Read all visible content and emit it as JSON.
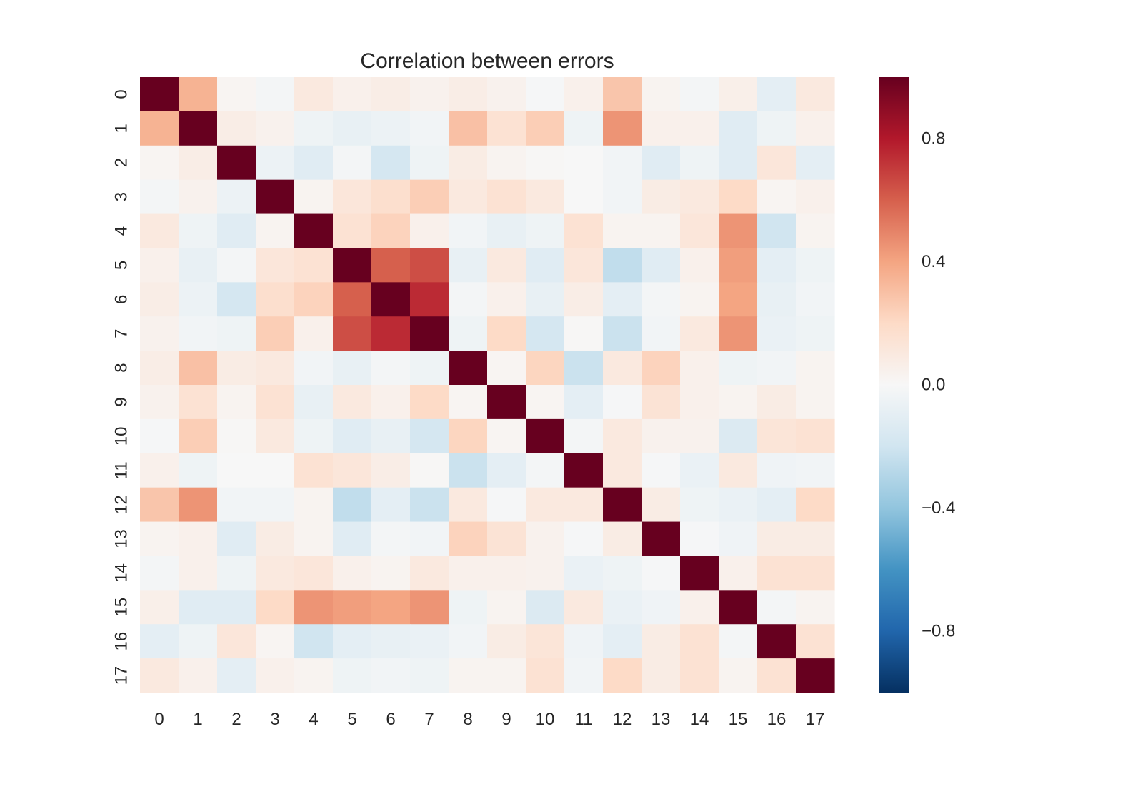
{
  "chart_data": {
    "type": "heatmap",
    "title": "Correlation between errors",
    "xlabel": "",
    "ylabel": "",
    "x_categories": [
      "0",
      "1",
      "2",
      "3",
      "4",
      "5",
      "6",
      "7",
      "8",
      "9",
      "10",
      "11",
      "12",
      "13",
      "14",
      "15",
      "16",
      "17"
    ],
    "y_categories": [
      "0",
      "1",
      "2",
      "3",
      "4",
      "5",
      "6",
      "7",
      "8",
      "9",
      "10",
      "11",
      "12",
      "13",
      "14",
      "15",
      "16",
      "17"
    ],
    "values": [
      [
        1.0,
        0.35,
        0.02,
        -0.02,
        0.1,
        0.05,
        0.07,
        0.04,
        0.07,
        0.04,
        -0.01,
        0.05,
        0.28,
        0.03,
        -0.02,
        0.06,
        -0.1,
        0.1
      ],
      [
        0.35,
        1.0,
        0.07,
        0.04,
        -0.05,
        -0.08,
        -0.06,
        -0.03,
        0.3,
        0.15,
        0.25,
        -0.05,
        0.45,
        0.05,
        0.05,
        -0.12,
        -0.05,
        0.05
      ],
      [
        0.02,
        0.07,
        1.0,
        -0.06,
        -0.12,
        -0.02,
        -0.18,
        -0.05,
        0.08,
        0.03,
        0.01,
        0.0,
        -0.03,
        -0.12,
        -0.05,
        -0.12,
        0.12,
        -0.1
      ],
      [
        -0.02,
        0.04,
        -0.06,
        1.0,
        0.03,
        0.12,
        0.17,
        0.25,
        0.1,
        0.15,
        0.1,
        0.0,
        -0.03,
        0.08,
        0.1,
        0.2,
        0.02,
        0.05
      ],
      [
        0.1,
        -0.05,
        -0.12,
        0.03,
        1.0,
        0.15,
        0.23,
        0.05,
        -0.03,
        -0.08,
        -0.05,
        0.15,
        0.03,
        0.03,
        0.12,
        0.45,
        -0.2,
        0.03
      ],
      [
        0.05,
        -0.08,
        -0.02,
        0.12,
        0.15,
        1.0,
        0.6,
        0.65,
        -0.08,
        0.1,
        -0.12,
        0.12,
        -0.25,
        -0.12,
        0.05,
        0.42,
        -0.1,
        -0.05
      ],
      [
        0.07,
        -0.06,
        -0.18,
        0.17,
        0.23,
        0.6,
        1.0,
        0.75,
        -0.02,
        0.05,
        -0.08,
        0.07,
        -0.1,
        -0.02,
        0.03,
        0.4,
        -0.08,
        -0.03
      ],
      [
        0.04,
        -0.03,
        -0.05,
        0.25,
        0.05,
        0.65,
        0.75,
        1.0,
        -0.05,
        0.2,
        -0.18,
        0.01,
        -0.22,
        -0.03,
        0.1,
        0.45,
        -0.07,
        -0.05
      ],
      [
        0.07,
        0.3,
        0.08,
        0.1,
        -0.03,
        -0.08,
        -0.02,
        -0.05,
        1.0,
        0.02,
        0.22,
        -0.22,
        0.1,
        0.23,
        0.05,
        -0.05,
        -0.03,
        0.03
      ],
      [
        0.04,
        0.15,
        0.03,
        0.15,
        -0.08,
        0.1,
        0.05,
        0.2,
        0.02,
        1.0,
        0.02,
        -0.1,
        -0.01,
        0.14,
        0.05,
        0.03,
        0.08,
        0.03
      ],
      [
        -0.01,
        0.25,
        0.01,
        0.1,
        -0.05,
        -0.12,
        -0.08,
        -0.18,
        0.22,
        0.02,
        1.0,
        -0.02,
        0.1,
        0.04,
        0.04,
        -0.14,
        0.13,
        0.15
      ],
      [
        0.05,
        -0.05,
        0.0,
        0.0,
        0.15,
        0.12,
        0.07,
        0.01,
        -0.22,
        -0.1,
        -0.02,
        1.0,
        0.1,
        -0.01,
        -0.07,
        0.1,
        -0.04,
        -0.03
      ],
      [
        0.28,
        0.45,
        -0.03,
        -0.03,
        0.03,
        -0.25,
        -0.1,
        -0.22,
        0.1,
        -0.01,
        0.1,
        0.1,
        1.0,
        0.08,
        -0.05,
        -0.07,
        -0.1,
        0.2
      ],
      [
        0.03,
        0.05,
        -0.12,
        0.08,
        0.03,
        -0.12,
        -0.02,
        -0.03,
        0.23,
        0.14,
        0.04,
        -0.01,
        0.08,
        1.0,
        -0.01,
        -0.04,
        0.08,
        0.08
      ],
      [
        -0.02,
        0.05,
        -0.05,
        0.1,
        0.12,
        0.05,
        0.03,
        0.1,
        0.05,
        0.05,
        0.04,
        -0.07,
        -0.05,
        -0.01,
        1.0,
        0.05,
        0.15,
        0.15
      ],
      [
        0.06,
        -0.12,
        -0.12,
        0.2,
        0.45,
        0.42,
        0.4,
        0.45,
        -0.05,
        0.03,
        -0.14,
        0.1,
        -0.07,
        -0.04,
        0.05,
        1.0,
        -0.02,
        0.03
      ],
      [
        -0.1,
        -0.05,
        0.12,
        0.02,
        -0.2,
        -0.1,
        -0.08,
        -0.07,
        -0.03,
        0.08,
        0.13,
        -0.04,
        -0.1,
        0.08,
        0.15,
        -0.02,
        1.0,
        0.15
      ],
      [
        0.1,
        0.05,
        -0.1,
        0.05,
        0.03,
        -0.05,
        -0.03,
        -0.05,
        0.03,
        0.03,
        0.15,
        -0.03,
        0.2,
        0.08,
        0.15,
        0.03,
        0.15,
        1.0
      ]
    ],
    "colorbar": {
      "vmin": -1.0,
      "vmax": 1.0,
      "ticks": [
        0.8,
        0.4,
        0.0,
        -0.4,
        -0.8
      ],
      "tick_labels": [
        "0.8",
        "0.4",
        "0.0",
        "−0.4",
        "−0.8"
      ],
      "colormap": "RdBu_r",
      "colors": [
        "#053061",
        "#2166ac",
        "#4393c3",
        "#92c5de",
        "#d1e5f0",
        "#f7f7f7",
        "#fddbc7",
        "#f4a582",
        "#d6604d",
        "#b2182b",
        "#67001f"
      ]
    },
    "grid": false,
    "legend": "none"
  }
}
